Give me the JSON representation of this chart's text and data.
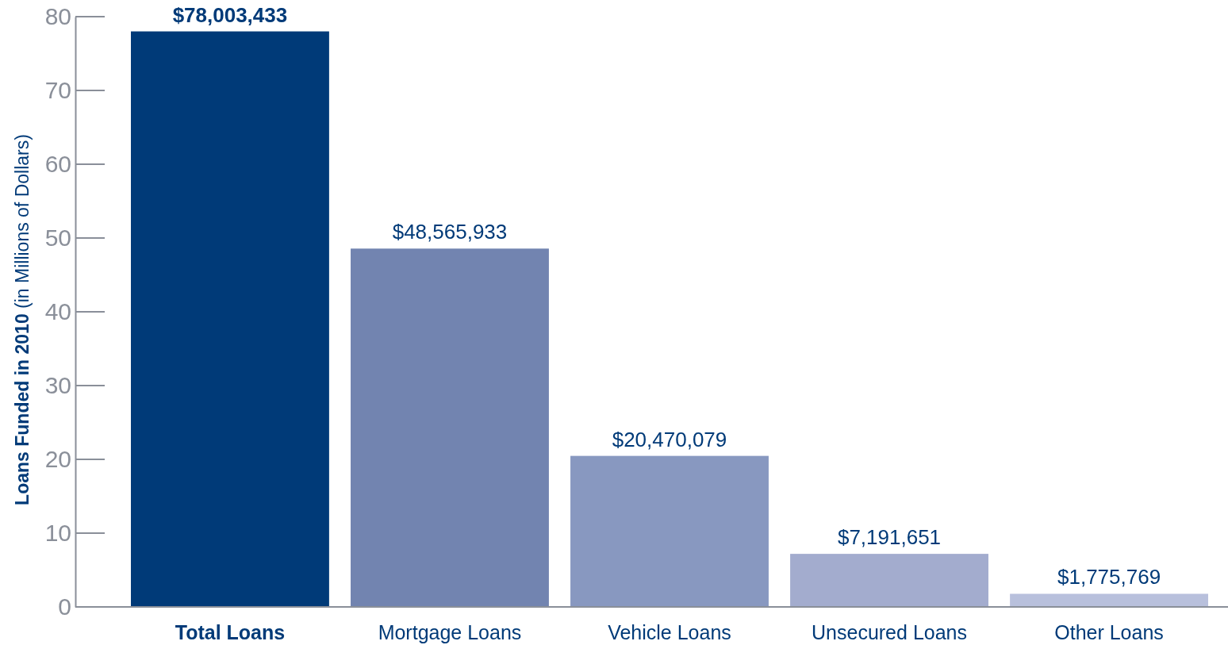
{
  "chart_data": {
    "type": "bar",
    "ylabel": "Loans Funded in 2010 (in Millions of Dollars)",
    "categories": [
      "Total Loans",
      "Mortgage Loans",
      "Vehicle Loans",
      "Unsecured Loans",
      "Other Loans"
    ],
    "values": [
      78.003433,
      48.565933,
      20.470079,
      7.191651,
      1.775769
    ],
    "colors": [
      "#003a78",
      "#7284b0",
      "#8898c0",
      "#a3acce",
      "#b8c0dc"
    ],
    "annotations": [
      {
        "text": "$78,003,433",
        "x": "Total Loans",
        "y": 78.003433
      },
      {
        "text": "$48,565,933",
        "x": "Mortgage Loans",
        "y": 48.565933
      },
      {
        "text": "$20,470,079",
        "x": "Vehicle Loans",
        "y": 20.470079
      },
      {
        "text": "$7,191,651",
        "x": "Unsecured Loans",
        "y": 7.191651
      },
      {
        "text": "$1,775,769",
        "x": "Other Loans",
        "y": 1.775769
      }
    ],
    "ylim": [
      0,
      80
    ],
    "yticks": [
      0,
      10,
      20,
      30,
      40,
      50,
      60,
      70,
      80
    ],
    "grid": false
  }
}
